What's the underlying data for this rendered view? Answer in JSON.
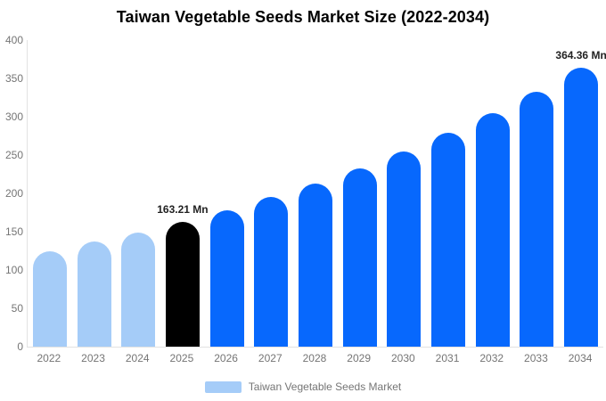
{
  "title": "Taiwan Vegetable Seeds Market Size (2022-2034)",
  "legend": {
    "label": "Taiwan Vegetable Seeds Market",
    "swatch_color": "#a5ccf8"
  },
  "colors": {
    "historical_bar": "#a5ccf8",
    "base_year_bar": "#000000",
    "forecast_bar": "#0768fd",
    "axis_line": "#e2e2e2",
    "tick_text": "#757575",
    "title_text": "#000000",
    "value_label_text": "#222222",
    "background": "#ffffff"
  },
  "chart_data": {
    "type": "bar",
    "title": "Taiwan Vegetable Seeds Market Size (2022-2034)",
    "xlabel": "",
    "ylabel": "",
    "categories": [
      "2022",
      "2023",
      "2024",
      "2025",
      "2026",
      "2027",
      "2028",
      "2029",
      "2030",
      "2031",
      "2032",
      "2033",
      "2034"
    ],
    "series": [
      {
        "name": "Taiwan Vegetable Seeds Market",
        "values": [
          125,
          137,
          149,
          163.21,
          178,
          195,
          213,
          233,
          255,
          279,
          305,
          333,
          364.36
        ]
      }
    ],
    "point_labels": [
      "",
      "",
      "",
      "163.21 Mn",
      "",
      "",
      "",
      "",
      "",
      "",
      "",
      "",
      "364.36 Mn"
    ],
    "point_colors": [
      "#a5ccf8",
      "#a5ccf8",
      "#a5ccf8",
      "#000000",
      "#0768fd",
      "#0768fd",
      "#0768fd",
      "#0768fd",
      "#0768fd",
      "#0768fd",
      "#0768fd",
      "#0768fd",
      "#0768fd"
    ],
    "ylim": [
      0,
      400
    ],
    "yticks": [
      0,
      50,
      100,
      150,
      200,
      250,
      300,
      350,
      400
    ],
    "grid": false,
    "legend_position": "bottom",
    "unit": "Mn"
  }
}
